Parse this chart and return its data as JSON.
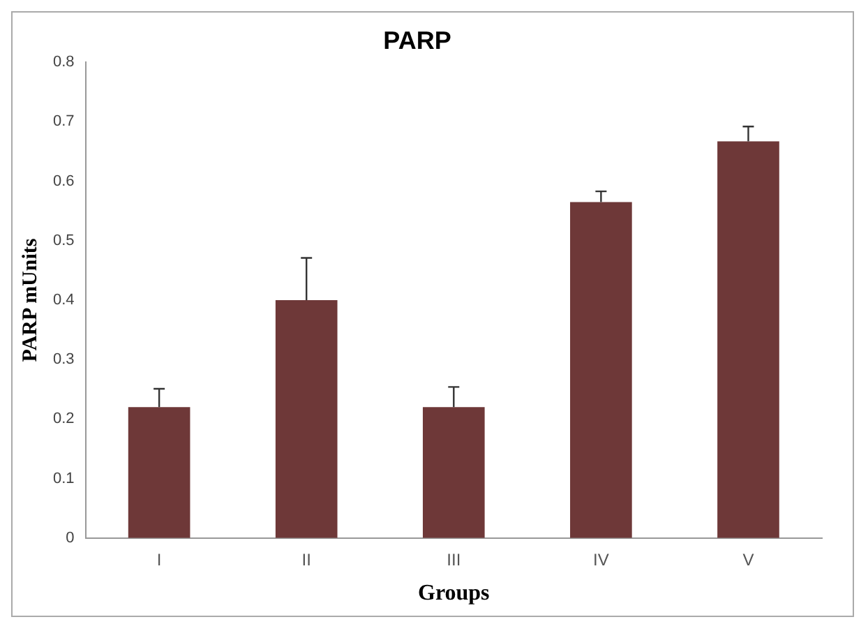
{
  "chart_data": {
    "type": "bar",
    "title": "PARP",
    "xlabel": "Groups",
    "ylabel": "PARP mUnits",
    "categories": [
      "I",
      "II",
      "III",
      "IV",
      "V"
    ],
    "values": [
      0.22,
      0.4,
      0.22,
      0.565,
      0.667
    ],
    "errors": [
      [
        0.22,
        0.251
      ],
      [
        0.4,
        0.471
      ],
      [
        0.22,
        0.254
      ],
      [
        0.565,
        0.583
      ],
      [
        0.667,
        0.692
      ]
    ],
    "color": "#6e3838",
    "ylim": [
      0,
      0.8
    ],
    "yticks": [
      0,
      0.1,
      0.2,
      0.3,
      0.4,
      0.5,
      0.6,
      0.7,
      0.8
    ],
    "grid": false,
    "legend": false
  }
}
